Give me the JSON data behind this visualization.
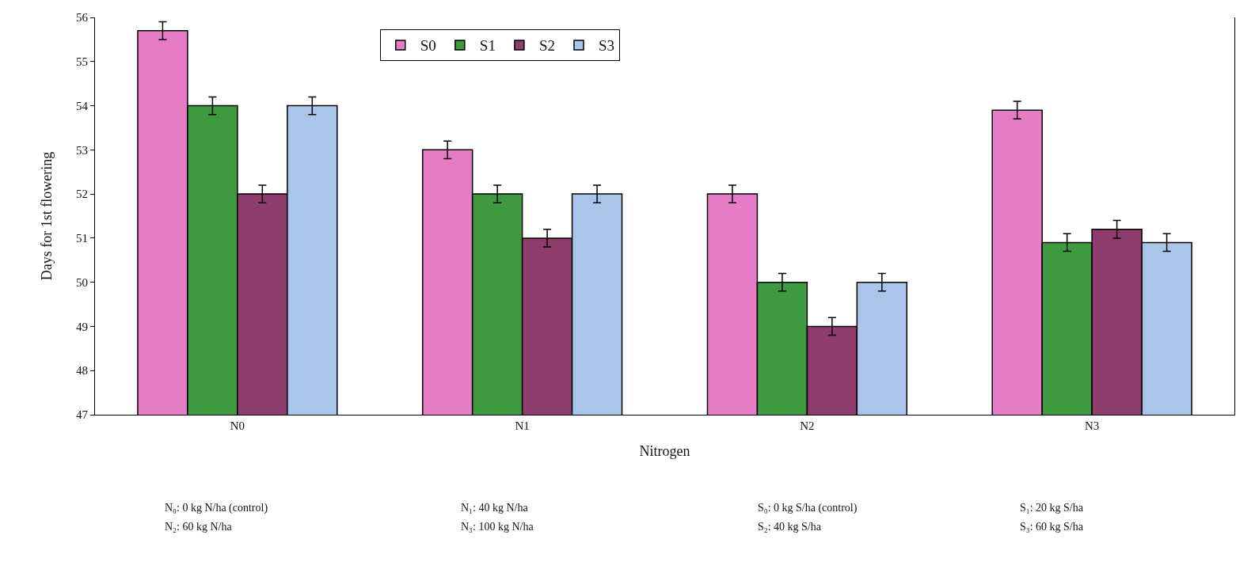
{
  "chart_data": {
    "type": "bar",
    "xlabel": "Nitrogen",
    "ylabel": "Days for 1st flowering",
    "categories": [
      "N0",
      "N1",
      "N2",
      "N3"
    ],
    "series": [
      {
        "name": "S0",
        "color": "#e67cc6",
        "values": [
          55.7,
          53,
          52,
          53.9
        ],
        "errors": [
          0.2,
          0.2,
          0.2,
          0.2
        ]
      },
      {
        "name": "S1",
        "color": "#3f9a3f",
        "values": [
          54,
          52,
          50,
          50.9
        ],
        "errors": [
          0.2,
          0.2,
          0.2,
          0.2
        ]
      },
      {
        "name": "S2",
        "color": "#8e3d6c",
        "values": [
          52,
          51,
          49,
          51.2
        ],
        "errors": [
          0.2,
          0.2,
          0.2,
          0.2
        ]
      },
      {
        "name": "S3",
        "color": "#a9c5ea",
        "values": [
          54,
          52,
          50,
          50.9
        ],
        "errors": [
          0.2,
          0.2,
          0.2,
          0.2
        ]
      }
    ],
    "ylim": [
      47,
      56
    ],
    "yticks": [
      47,
      48,
      49,
      50,
      51,
      52,
      53,
      54,
      55,
      56
    ],
    "grid": false,
    "legend": "top",
    "annotations": [
      "N₀: 0 kg N/ha (control)",
      "N₂: 60 kg N/ha",
      "N₁: 40 kg N/ha",
      "N₃: 100 kg N/ha",
      "S₀: 0 kg S/ha (control)",
      "S₂: 40 kg S/ha",
      "S₁: 20 kg S/ha",
      "S₃: 60 kg S/ha"
    ]
  }
}
